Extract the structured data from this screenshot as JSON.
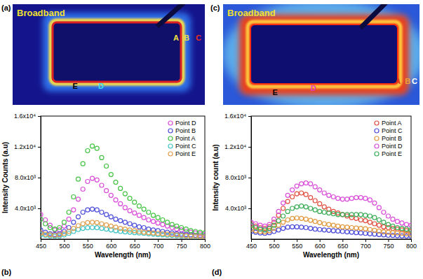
{
  "images": [
    {
      "label": "(a)",
      "title": "Broadband",
      "points": [
        {
          "name": "A",
          "color": "#f0e040"
        },
        {
          "name": "B",
          "color": "#f0e040"
        },
        {
          "name": "C",
          "color": "#e83020"
        },
        {
          "name": "D",
          "color": "#40e0f0"
        },
        {
          "name": "E",
          "color": "#000000"
        }
      ]
    },
    {
      "label": "(c)",
      "title": "Broadband",
      "points": [
        {
          "name": "A",
          "color": "#e03020"
        },
        {
          "name": "B",
          "color": "#f0a030"
        },
        {
          "name": "C",
          "color": "#ffffff"
        },
        {
          "name": "D",
          "color": "#e040c0"
        },
        {
          "name": "E",
          "color": "#000000"
        }
      ]
    }
  ],
  "chart_data": [
    {
      "type": "scatter",
      "label": "(b)",
      "x_label": "Wavelength (nm)",
      "y_label": "Intensity Counts (a.u)",
      "marker": "circle",
      "legend": "top-right",
      "xlim": [
        450,
        800
      ],
      "ylim": [
        0,
        16000
      ],
      "xticks": [
        450,
        500,
        550,
        600,
        650,
        700,
        750,
        800
      ],
      "yticks": [
        {
          "value": 4000,
          "label": "4.0x10³"
        },
        {
          "value": 8000,
          "label": "8.0x10³"
        },
        {
          "value": 12000,
          "label": "1.2x10⁴"
        },
        {
          "value": 16000,
          "label": "1.6x10⁴"
        }
      ],
      "x": [
        450,
        460,
        470,
        480,
        490,
        500,
        510,
        520,
        530,
        540,
        550,
        560,
        570,
        580,
        590,
        600,
        610,
        620,
        630,
        640,
        650,
        660,
        670,
        680,
        690,
        700,
        710,
        720,
        730,
        740,
        750,
        760,
        770,
        780,
        790,
        800
      ],
      "series": [
        {
          "name": "Point D",
          "color": "#d94fd9",
          "values": [
            3200,
            2500,
            1800,
            1200,
            1200,
            1700,
            2600,
            3800,
            5200,
            6500,
            7500,
            7900,
            7700,
            7000,
            6300,
            5700,
            5100,
            4600,
            4100,
            3700,
            3400,
            3100,
            2800,
            2500,
            2300,
            2100,
            1900,
            1700,
            1500,
            1300,
            1200,
            1000,
            900,
            800,
            700,
            600
          ]
        },
        {
          "name": "Point B",
          "color": "#4f4fd9",
          "values": [
            1200,
            900,
            700,
            600,
            700,
            1000,
            1500,
            2200,
            2900,
            3500,
            3800,
            3900,
            3800,
            3500,
            3200,
            2900,
            2600,
            2400,
            2200,
            2000,
            1800,
            1600,
            1500,
            1300,
            1200,
            1100,
            1000,
            900,
            800,
            700,
            650,
            600,
            550,
            500,
            450,
            400
          ]
        },
        {
          "name": "Point A",
          "color": "#45c445",
          "values": [
            2600,
            2000,
            1500,
            1300,
            1500,
            2200,
            3500,
            5500,
            7800,
            9800,
            11500,
            12100,
            11800,
            10600,
            9500,
            8400,
            7400,
            6600,
            5900,
            5300,
            4800,
            4300,
            3900,
            3500,
            3100,
            2800,
            2500,
            2200,
            1900,
            1700,
            1500,
            1300,
            1100,
            1000,
            900,
            800
          ]
        },
        {
          "name": "Point C",
          "color": "#45c4c4",
          "values": [
            600,
            500,
            400,
            380,
            400,
            550,
            750,
            1000,
            1250,
            1400,
            1480,
            1500,
            1480,
            1400,
            1300,
            1200,
            1100,
            1000,
            950,
            900,
            850,
            800,
            750,
            700,
            650,
            600,
            550,
            500,
            480,
            450,
            420,
            400,
            380,
            350,
            330,
            300
          ]
        },
        {
          "name": "Point E",
          "color": "#e0a050",
          "values": [
            800,
            650,
            550,
            500,
            550,
            750,
            1000,
            1400,
            1750,
            2000,
            2150,
            2200,
            2150,
            2000,
            1850,
            1700,
            1550,
            1400,
            1300,
            1200,
            1100,
            1000,
            900,
            850,
            800,
            750,
            700,
            650,
            600,
            550,
            500,
            450,
            400,
            400,
            350,
            300
          ]
        }
      ]
    },
    {
      "type": "scatter",
      "label": "(d)",
      "x_label": "Wavelength (nm)",
      "y_label": "Intensity count (a.u)",
      "marker": "circle",
      "legend": "top-right",
      "xlim": [
        450,
        800
      ],
      "ylim": [
        0,
        16000
      ],
      "xticks": [
        450,
        500,
        550,
        600,
        650,
        700,
        750,
        800
      ],
      "yticks": [
        {
          "value": 4000,
          "label": "4.0x10³"
        },
        {
          "value": 8000,
          "label": "8.0x10³"
        },
        {
          "value": 12000,
          "label": "1.2x10⁴"
        },
        {
          "value": 16000,
          "label": "1.6x10⁴"
        }
      ],
      "x": [
        450,
        460,
        470,
        480,
        490,
        500,
        510,
        520,
        530,
        540,
        550,
        560,
        570,
        580,
        590,
        600,
        610,
        620,
        630,
        640,
        650,
        660,
        670,
        680,
        690,
        700,
        710,
        720,
        730,
        740,
        750,
        760,
        770,
        780,
        790,
        800
      ],
      "series": [
        {
          "name": "Point A",
          "color": "#e05040",
          "values": [
            2000,
            1700,
            1500,
            1400,
            1600,
            2200,
            3100,
            4000,
            4900,
            5500,
            5900,
            6000,
            5800,
            5400,
            5000,
            4600,
            4200,
            3900,
            3600,
            3400,
            3200,
            3000,
            2800,
            2700,
            2500,
            2400,
            2200,
            2000,
            1800,
            1600,
            1500,
            1400,
            1300,
            1200,
            1100,
            1000
          ]
        },
        {
          "name": "Point C",
          "color": "#4f4fd9",
          "values": [
            1000,
            900,
            800,
            750,
            850,
            1000,
            1200,
            1400,
            1550,
            1600,
            1600,
            1550,
            1500,
            1400,
            1300,
            1250,
            1200,
            1150,
            1100,
            1050,
            1000,
            950,
            900,
            850,
            800,
            750,
            700,
            650,
            600,
            550,
            500,
            480,
            450,
            420,
            400,
            380
          ]
        },
        {
          "name": "Point B",
          "color": "#e09a40",
          "values": [
            1300,
            1100,
            1000,
            950,
            1100,
            1400,
            1800,
            2200,
            2500,
            2700,
            2750,
            2700,
            2600,
            2450,
            2300,
            2150,
            2000,
            1900,
            1800,
            1700,
            1600,
            1550,
            1500,
            1450,
            1400,
            1350,
            1250,
            1150,
            1050,
            950,
            900,
            850,
            800,
            750,
            700,
            650
          ]
        },
        {
          "name": "Point D",
          "color": "#d94fd9",
          "values": [
            2200,
            2000,
            1800,
            1700,
            1900,
            2600,
            3600,
            4700,
            5700,
            6400,
            6900,
            7200,
            7300,
            7200,
            6800,
            6400,
            6000,
            5700,
            5500,
            5300,
            5200,
            5200,
            5300,
            5400,
            5400,
            5300,
            5100,
            4700,
            4100,
            3500,
            3000,
            2600,
            2300,
            2100,
            1900,
            1800
          ]
        },
        {
          "name": "Point E",
          "color": "#3fae5a",
          "values": [
            1800,
            1500,
            1300,
            1200,
            1400,
            1800,
            2400,
            3000,
            3600,
            4000,
            4200,
            4300,
            4200,
            4000,
            3800,
            3600,
            3500,
            3400,
            3300,
            3200,
            3200,
            3200,
            3200,
            3200,
            3200,
            3100,
            3000,
            2800,
            2500,
            2200,
            1900,
            1700,
            1500,
            1400,
            1300,
            1200
          ]
        }
      ]
    }
  ]
}
